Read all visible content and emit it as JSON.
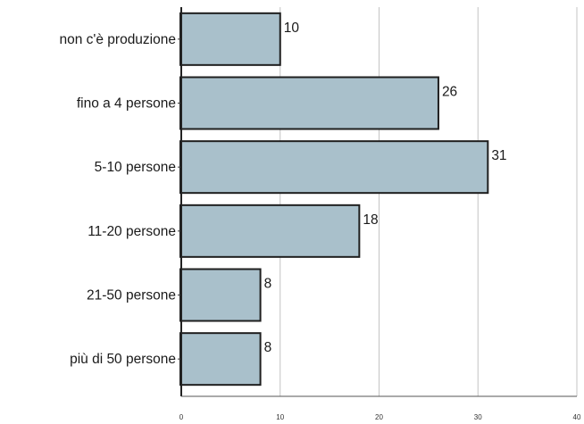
{
  "chart_data": {
    "type": "bar",
    "orientation": "horizontal",
    "categories": [
      "non c'è produzione",
      "fino a 4 persone",
      "5-10 persone",
      "11-20 persone",
      "21-50 persone",
      "più di 50 persone"
    ],
    "values": [
      10,
      26,
      31,
      18,
      8,
      8
    ],
    "xlim": [
      0,
      40
    ],
    "xticks": [
      "0",
      "10",
      "20",
      "30",
      "40"
    ],
    "grid": true,
    "bar_color": "#a9c0cb",
    "bar_edge_color": "#1f1f1f"
  }
}
